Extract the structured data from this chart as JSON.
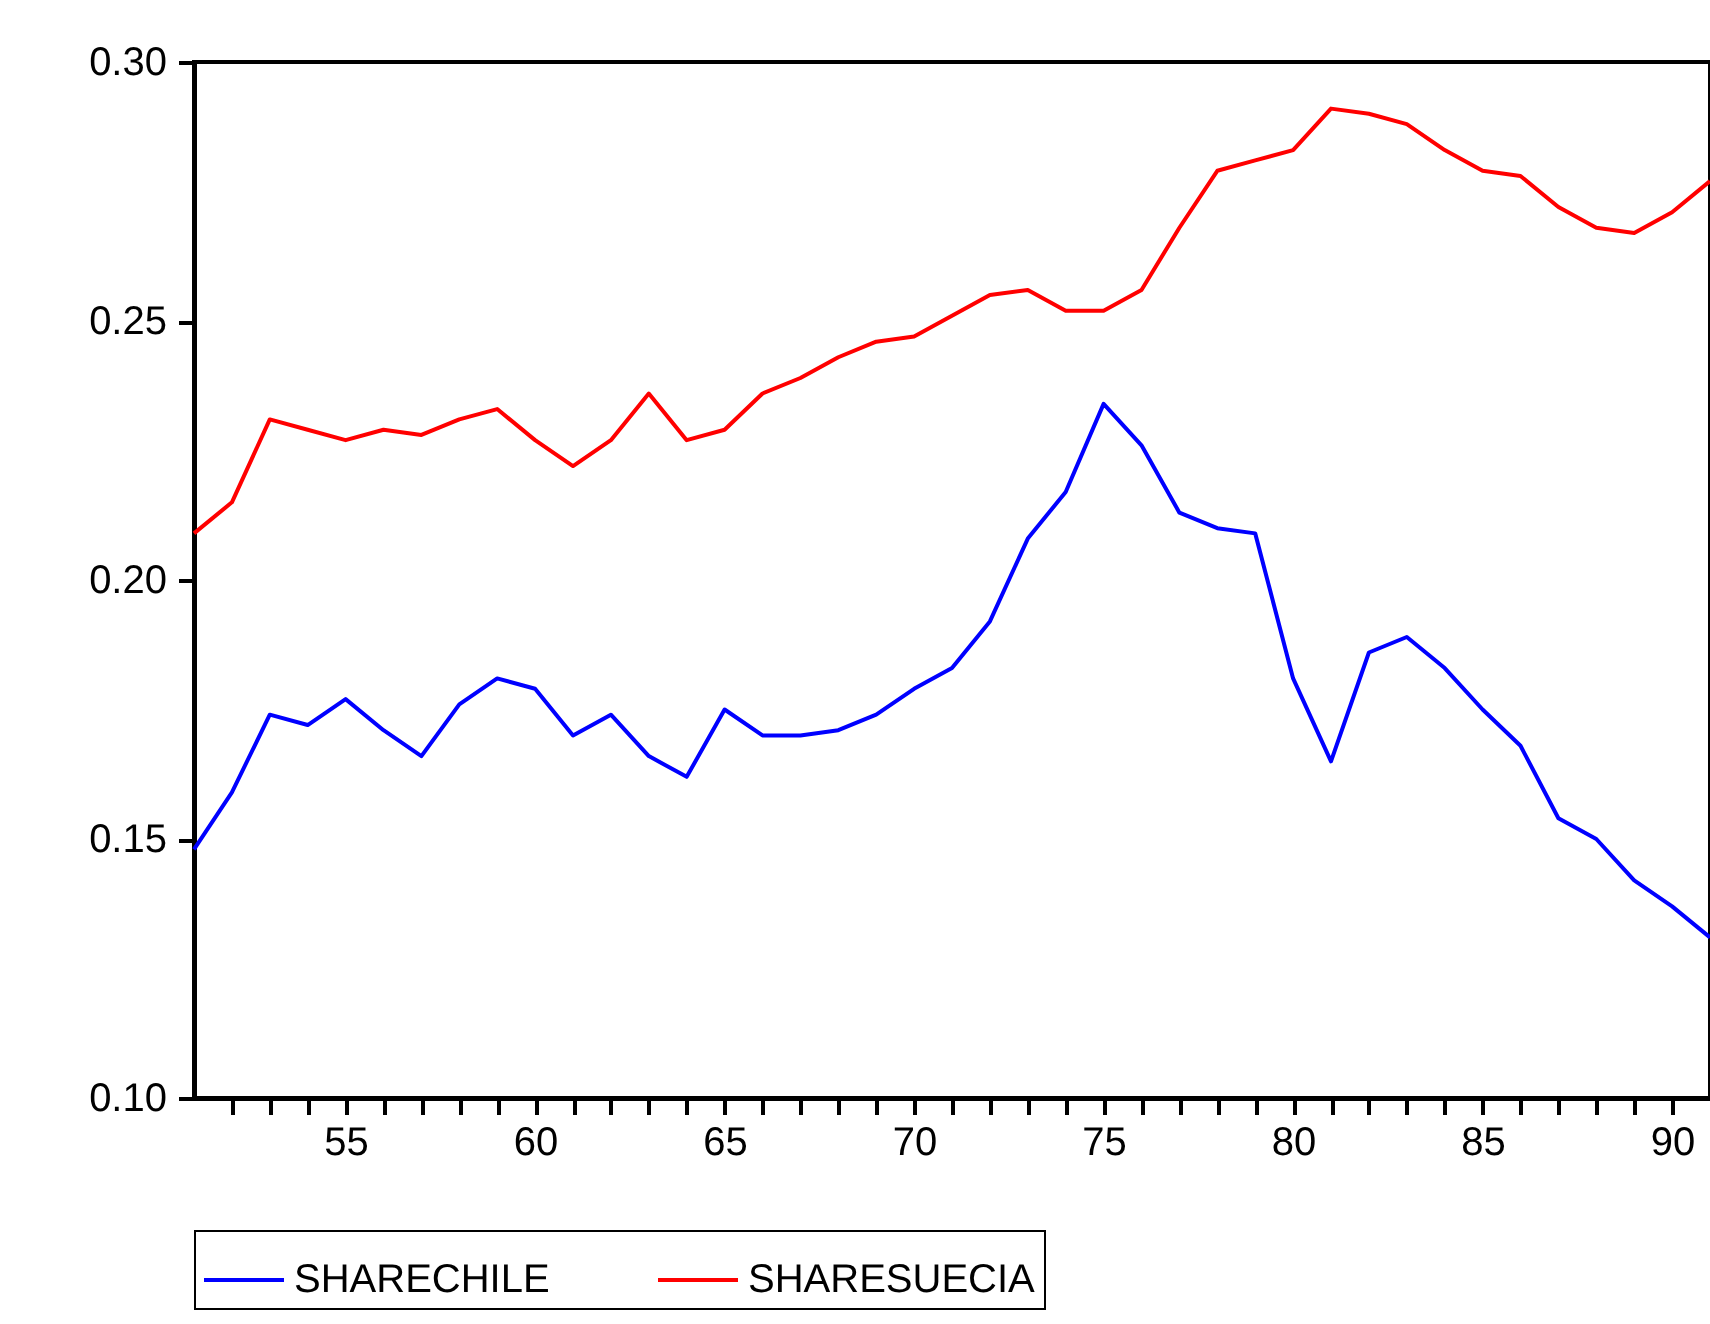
{
  "chart_data": {
    "type": "line",
    "x": [
      51,
      52,
      53,
      54,
      55,
      56,
      57,
      58,
      59,
      60,
      61,
      62,
      63,
      64,
      65,
      66,
      67,
      68,
      69,
      70,
      71,
      72,
      73,
      74,
      75,
      76,
      77,
      78,
      79,
      80,
      81,
      82,
      83,
      84,
      85,
      86,
      87,
      88,
      89,
      90,
      91
    ],
    "series": [
      {
        "name": "SHARECHILE",
        "color": "#0000ff",
        "values": [
          0.148,
          0.159,
          0.174,
          0.172,
          0.177,
          0.171,
          0.166,
          0.176,
          0.181,
          0.179,
          0.17,
          0.174,
          0.166,
          0.162,
          0.175,
          0.17,
          0.17,
          0.171,
          0.174,
          0.179,
          0.183,
          0.192,
          0.208,
          0.217,
          0.234,
          0.226,
          0.213,
          0.21,
          0.209,
          0.181,
          0.165,
          0.186,
          0.189,
          0.183,
          0.175,
          0.168,
          0.154,
          0.15,
          0.142,
          0.137,
          0.131
        ]
      },
      {
        "name": "SHARESUECIA",
        "color": "#ff0000",
        "values": [
          0.209,
          0.215,
          0.231,
          0.229,
          0.227,
          0.229,
          0.228,
          0.231,
          0.233,
          0.227,
          0.222,
          0.227,
          0.236,
          0.227,
          0.229,
          0.236,
          0.239,
          0.243,
          0.246,
          0.247,
          0.251,
          0.255,
          0.256,
          0.252,
          0.252,
          0.256,
          0.268,
          0.279,
          0.281,
          0.283,
          0.291,
          0.29,
          0.288,
          0.283,
          0.279,
          0.278,
          0.272,
          0.268,
          0.267,
          0.271,
          0.277
        ]
      }
    ],
    "xlim": [
      51,
      91
    ],
    "xticks": [
      {
        "value": 52,
        "label": null
      },
      {
        "value": 53,
        "label": null
      },
      {
        "value": 54,
        "label": null
      },
      55,
      {
        "value": 56,
        "label": null
      },
      {
        "value": 57,
        "label": null
      },
      {
        "value": 58,
        "label": null
      },
      {
        "value": 59,
        "label": null
      },
      60,
      {
        "value": 61,
        "label": null
      },
      {
        "value": 62,
        "label": null
      },
      {
        "value": 63,
        "label": null
      },
      {
        "value": 64,
        "label": null
      },
      65,
      {
        "value": 66,
        "label": null
      },
      {
        "value": 67,
        "label": null
      },
      {
        "value": 68,
        "label": null
      },
      {
        "value": 69,
        "label": null
      },
      70,
      {
        "value": 71,
        "label": null
      },
      {
        "value": 72,
        "label": null
      },
      {
        "value": 73,
        "label": null
      },
      {
        "value": 74,
        "label": null
      },
      75,
      {
        "value": 76,
        "label": null
      },
      {
        "value": 77,
        "label": null
      },
      {
        "value": 78,
        "label": null
      },
      {
        "value": 79,
        "label": null
      },
      80,
      {
        "value": 81,
        "label": null
      },
      {
        "value": 82,
        "label": null
      },
      {
        "value": 83,
        "label": null
      },
      {
        "value": 84,
        "label": null
      },
      85,
      {
        "value": 86,
        "label": null
      },
      {
        "value": 87,
        "label": null
      },
      {
        "value": 88,
        "label": null
      },
      {
        "value": 89,
        "label": null
      },
      90
    ],
    "ylim": [
      0.1,
      0.3
    ],
    "yticks": [
      {
        "value": 0.1,
        "label": "0.10"
      },
      {
        "value": 0.15,
        "label": "0.15"
      },
      {
        "value": 0.2,
        "label": "0.20"
      },
      {
        "value": 0.25,
        "label": "0.25"
      },
      {
        "value": 0.3,
        "label": "0.30"
      }
    ],
    "grid": false,
    "legend": "bottom",
    "marker": "none",
    "line_style": "solid"
  }
}
